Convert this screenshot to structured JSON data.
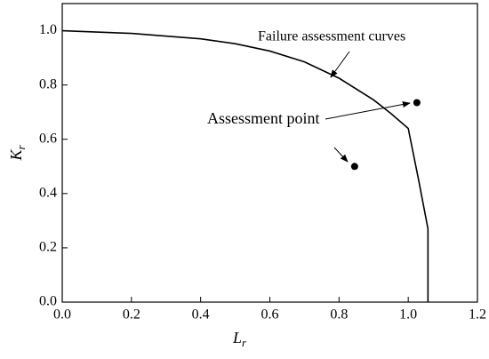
{
  "chart_data": {
    "type": "line",
    "xlabel": "L",
    "xlabel_subscript": "r",
    "ylabel": "K",
    "ylabel_subscript": "r",
    "xlim": [
      0,
      1.2
    ],
    "ylim": [
      0,
      1.1
    ],
    "xticks": [
      {
        "value": 0,
        "label": "0.0"
      },
      {
        "value": 0.2,
        "label": "0.2"
      },
      {
        "value": 0.4,
        "label": "0.4"
      },
      {
        "value": 0.6,
        "label": "0.6"
      },
      {
        "value": 0.8,
        "label": "0.8"
      },
      {
        "value": 1.0,
        "label": "1.0"
      },
      {
        "value": 1.2,
        "label": "1.2"
      }
    ],
    "yticks": [
      {
        "value": 0,
        "label": "0.0"
      },
      {
        "value": 0.2,
        "label": "0.2"
      },
      {
        "value": 0.4,
        "label": "0.4"
      },
      {
        "value": 0.6,
        "label": "0.6"
      },
      {
        "value": 0.8,
        "label": "0.8"
      },
      {
        "value": 1.0,
        "label": "1.0"
      }
    ],
    "series": [
      {
        "type": "line",
        "color": "#000000",
        "x": [
          0,
          0.2,
          0.4,
          0.5,
          0.6,
          0.7,
          0.8,
          0.9,
          0.95,
          1.0,
          1.03,
          1.057,
          1.057
        ],
        "values": [
          1.0,
          0.99,
          0.97,
          0.952,
          0.925,
          0.885,
          0.825,
          0.745,
          0.695,
          0.64,
          0.45,
          0.27,
          0
        ]
      },
      {
        "type": "scatter",
        "color": "#000000",
        "x": [
          0.845,
          1.025
        ],
        "values": [
          0.5,
          0.735
        ]
      }
    ],
    "annotations": [
      {
        "text": "Failure assessment curves"
      },
      {
        "text": "Assessment point"
      }
    ]
  }
}
